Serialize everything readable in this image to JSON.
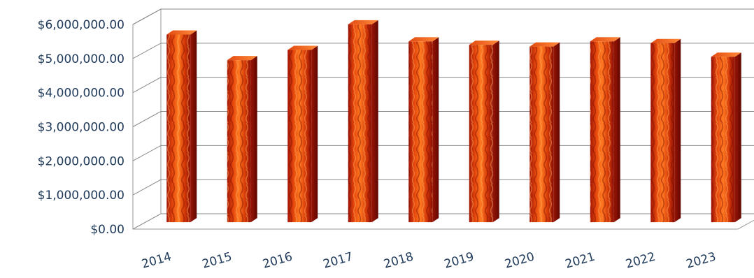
{
  "chart_data": {
    "type": "bar",
    "title": "",
    "xlabel": "",
    "ylabel": "",
    "categories": [
      "2014",
      "2015",
      "2016",
      "2017",
      "2018",
      "2019",
      "2020",
      "2021",
      "2022",
      "2023"
    ],
    "values": [
      5500000,
      4750000,
      5050000,
      5800000,
      5300000,
      5200000,
      5150000,
      5300000,
      5250000,
      4850000
    ],
    "ylim": [
      0,
      6000000
    ],
    "yticks": [
      0,
      1000000,
      2000000,
      3000000,
      4000000,
      5000000,
      6000000
    ],
    "ytick_labels": [
      "$0.00",
      "$1,000,000.00",
      "$2,000,000.00",
      "$3,000,000.00",
      "$4,000,000.00",
      "$5,000,000.00",
      "$6,000,000.00"
    ],
    "grid": true,
    "bar_style": "3d-column",
    "colors": {
      "bar_dark": "#8b0f05",
      "bar_mid": "#d63a08",
      "bar_light": "#ff6a1a",
      "bar_highlight": "#ffb060",
      "axis_text": "#1f3a5a",
      "grid": "#8a8a8a"
    }
  }
}
